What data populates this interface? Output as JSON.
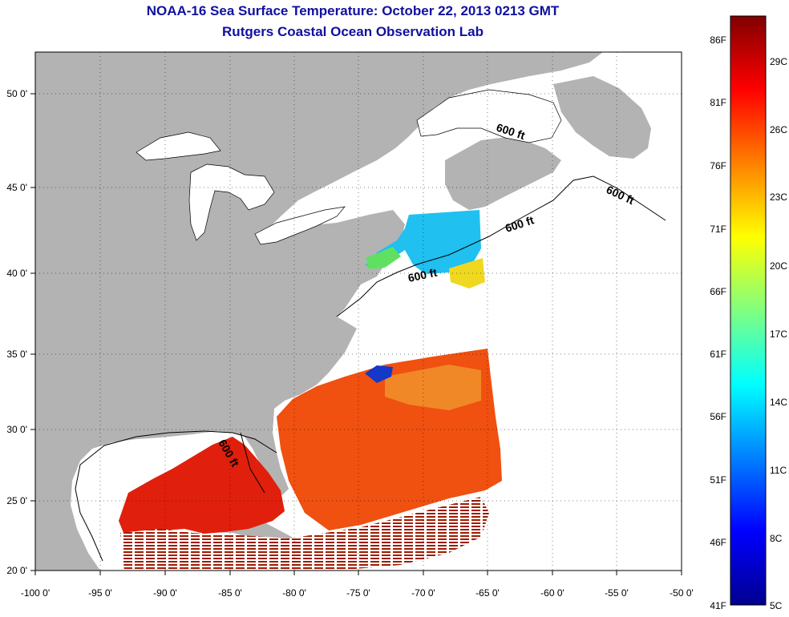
{
  "header": {
    "title": "NOAA-16 Sea Surface Temperature:  October 22, 2013 0213 GMT",
    "subtitle": "Rutgers Coastal Ocean Observation Lab"
  },
  "map": {
    "lon_range": [
      -100,
      -50
    ],
    "lat_range": [
      20,
      52.5
    ],
    "grid": "dotted",
    "x_ticks": [
      "-100 0'",
      "-95 0'",
      "-90 0'",
      "-85 0'",
      "-80 0'",
      "-75 0'",
      "-70 0'",
      "-65 0'",
      "-60 0'",
      "-55 0'",
      "-50 0'"
    ],
    "y_ticks": [
      "20 0'",
      "25 0'",
      "30 0'",
      "35 0'",
      "40 0'",
      "45 0'",
      "50 0'"
    ],
    "contour_label": "600 ft",
    "colors": {
      "land": "#b3b3b3",
      "no_data": "#ffffff",
      "coast": "#000000"
    }
  },
  "colorbar": {
    "fahrenheit_labels": [
      "86F",
      "81F",
      "76F",
      "71F",
      "66F",
      "61F",
      "56F",
      "51F",
      "46F",
      "41F"
    ],
    "celsius_labels": [
      "29C",
      "26C",
      "23C",
      "20C",
      "17C",
      "14C",
      "11C",
      "8C",
      "5C"
    ],
    "stops": [
      "#00008f",
      "#0000ff",
      "#0080ff",
      "#00ffff",
      "#80ff80",
      "#ffff00",
      "#ff8000",
      "#ff0000",
      "#800000"
    ]
  }
}
